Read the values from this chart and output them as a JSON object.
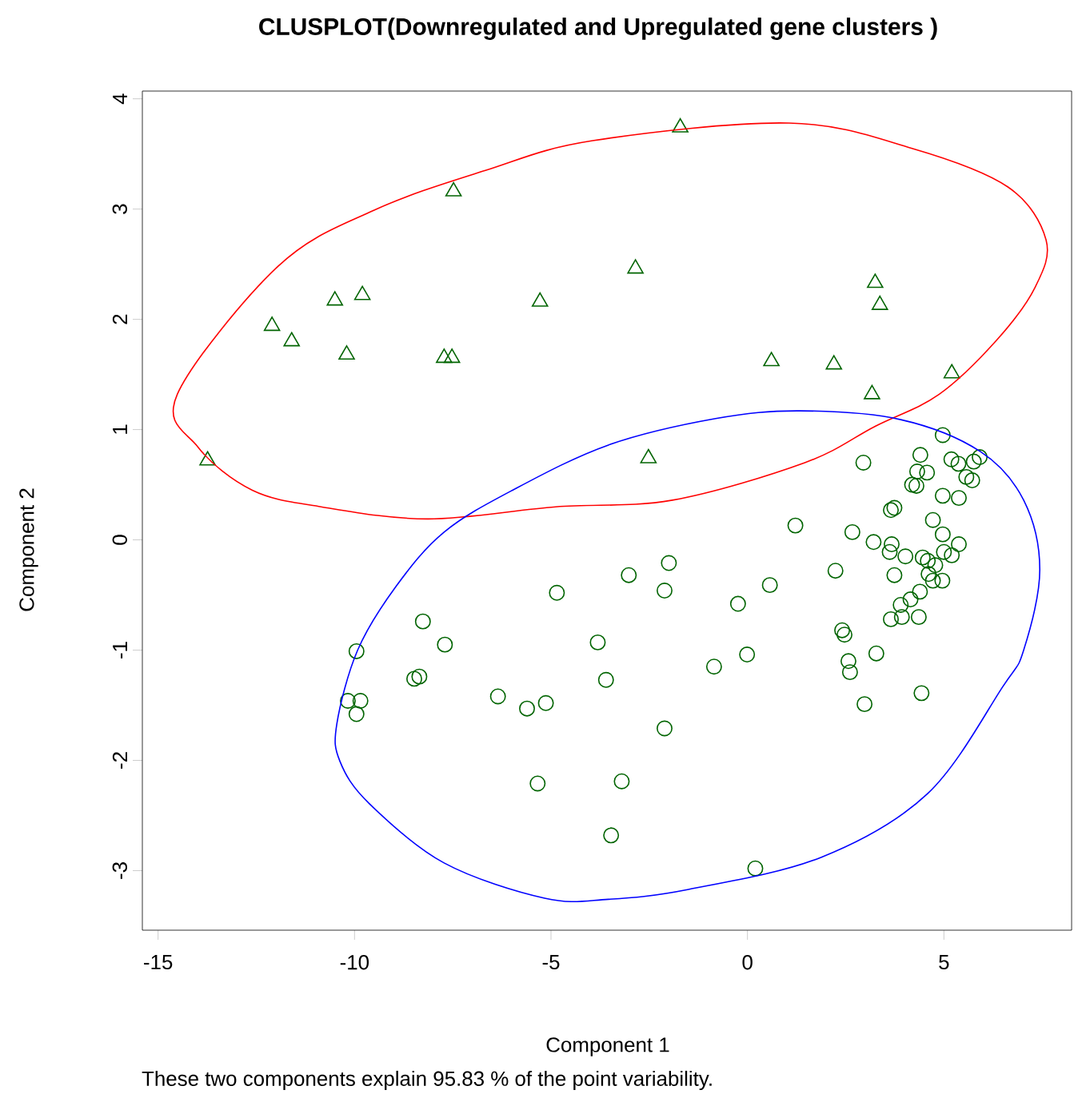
{
  "chart_data": {
    "type": "scatter",
    "title": "CLUSPLOT(Downregulated and Upregulated gene clusters )",
    "xlabel": "Component 1",
    "ylabel": "Component 2",
    "annotations": [
      "These two components explain 95.83 % of the point variability."
    ],
    "xlim": [
      -15.4,
      8.25
    ],
    "ylim": [
      -3.54,
      4.07
    ],
    "xticks": [
      -15,
      -10,
      -5,
      0,
      5
    ],
    "yticks": [
      -3,
      -2,
      -1,
      0,
      1,
      2,
      3,
      4
    ],
    "series": [
      {
        "marker": "triangle",
        "color": "#006400",
        "x": [
          -13.74,
          -12.1,
          -11.6,
          -10.5,
          -10.2,
          -9.8,
          -7.72,
          -7.52,
          -7.48,
          -5.28,
          -2.85,
          -2.52,
          -1.71,
          0.61,
          2.2,
          3.17,
          3.25,
          3.37,
          5.2
        ],
        "values": [
          0.72,
          1.94,
          1.8,
          2.17,
          1.68,
          2.22,
          1.65,
          1.65,
          3.16,
          2.16,
          2.46,
          0.74,
          3.74,
          1.62,
          1.59,
          1.32,
          2.33,
          2.13,
          1.51
        ]
      },
      {
        "marker": "circle",
        "color": "#006400",
        "x": [
          4.97,
          4.4,
          5.19,
          5.37,
          5.76,
          5.91,
          2.95,
          4.32,
          4.57,
          4.19,
          4.3,
          5.57,
          5.72,
          4.97,
          5.38,
          3.74,
          3.65,
          4.72,
          1.22,
          2.67,
          4.97,
          3.21,
          3.67,
          3.62,
          4.02,
          5.0,
          5.38,
          5.2,
          4.46,
          4.59,
          4.78,
          4.61,
          4.72,
          4.96,
          3.74,
          -3.02,
          -2.0,
          -2.11,
          -0.24,
          0.57,
          2.24,
          4.39,
          4.15,
          3.9,
          3.93,
          3.65,
          4.36,
          2.41,
          2.47,
          3.28,
          -0.01,
          2.57,
          2.61,
          -0.85,
          4.43,
          2.98,
          -3.6,
          -2.11,
          -3.2,
          -3.47,
          0.2,
          -4.85,
          -3.81,
          -8.26,
          -7.7,
          -9.95,
          -8.48,
          -8.35,
          -10.17,
          -9.85,
          -9.95,
          -6.35,
          -5.61,
          -5.13,
          -5.34
        ],
        "values": [
          0.95,
          0.77,
          0.73,
          0.69,
          0.71,
          0.75,
          0.7,
          0.62,
          0.61,
          0.5,
          0.49,
          0.57,
          0.54,
          0.4,
          0.38,
          0.29,
          0.27,
          0.18,
          0.13,
          0.07,
          0.05,
          -0.02,
          -0.04,
          -0.11,
          -0.15,
          -0.11,
          -0.04,
          -0.14,
          -0.16,
          -0.19,
          -0.23,
          -0.31,
          -0.37,
          -0.37,
          -0.32,
          -0.32,
          -0.21,
          -0.46,
          -0.58,
          -0.41,
          -0.28,
          -0.47,
          -0.54,
          -0.59,
          -0.7,
          -0.72,
          -0.7,
          -0.82,
          -0.86,
          -1.03,
          -1.04,
          -1.1,
          -1.2,
          -1.15,
          -1.39,
          -1.49,
          -1.27,
          -1.71,
          -2.19,
          -2.68,
          -2.98,
          -0.48,
          -0.93,
          -0.74,
          -0.95,
          -1.01,
          -1.26,
          -1.24,
          -1.46,
          -1.46,
          -1.58,
          -1.42,
          -1.53,
          -1.48,
          -2.21
        ]
      }
    ]
  }
}
